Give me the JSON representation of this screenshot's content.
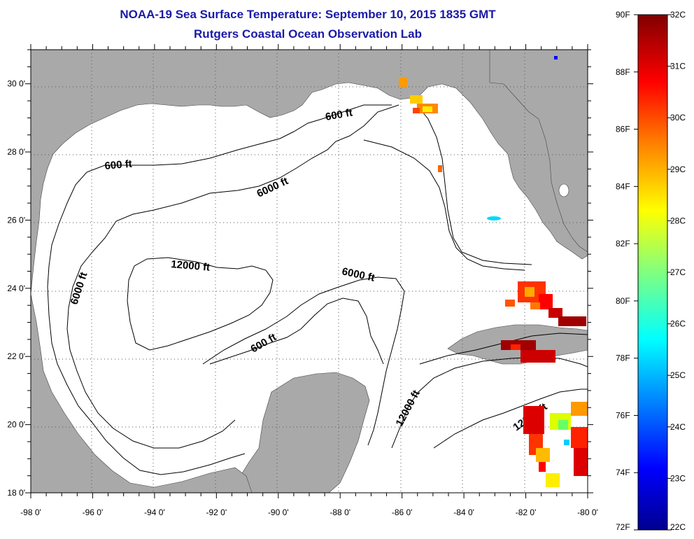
{
  "title": {
    "line1": "NOAA-19 Sea Surface Temperature:  September 10, 2015 1835 GMT",
    "line2": "Rutgers Coastal Ocean Observation Lab"
  },
  "map": {
    "x_ticks": [
      {
        "value": -98,
        "label": "-98 0'"
      },
      {
        "value": -96,
        "label": "-96 0'"
      },
      {
        "value": -94,
        "label": "-94 0'"
      },
      {
        "value": -92,
        "label": "-92 0'"
      },
      {
        "value": -90,
        "label": "-90 0'"
      },
      {
        "value": -88,
        "label": "-88 0'"
      },
      {
        "value": -86,
        "label": "-86 0'"
      },
      {
        "value": -84,
        "label": "-84 0'"
      },
      {
        "value": -82,
        "label": "-82 0'"
      },
      {
        "value": -80,
        "label": "-80 0'"
      }
    ],
    "y_ticks": [
      {
        "value": 30,
        "label": "30 0'"
      },
      {
        "value": 28,
        "label": "28 0'"
      },
      {
        "value": 26,
        "label": "26 0'"
      },
      {
        "value": 24,
        "label": "24 0'"
      },
      {
        "value": 22,
        "label": "22 0'"
      },
      {
        "value": 20,
        "label": "20 0'"
      },
      {
        "value": 18,
        "label": "18 0'"
      }
    ],
    "lon_range": [
      -98,
      -80
    ],
    "lat_range": [
      18,
      31
    ],
    "grid": "dotted",
    "land_color": "#a9a9a9",
    "water_color": "#ffffff",
    "contour_labels": {
      "c600_north": "600 ft",
      "c600_west": "600 ft",
      "c6000_north": "6000 ft",
      "c12000_center": "12000 ft",
      "c6000_center": "6000 ft",
      "c6000_west": "6000 ft",
      "c600_south": "600 ft",
      "c12000_east": "12000 ft",
      "c12000_se": "12000 ft"
    }
  },
  "colorbar": {
    "f_labels": [
      "90F",
      "88F",
      "86F",
      "84F",
      "82F",
      "80F",
      "78F",
      "76F",
      "74F",
      "72F"
    ],
    "c_labels": [
      "32C",
      "31C",
      "30C",
      "29C",
      "28C",
      "27C",
      "26C",
      "25C",
      "24C",
      "23C",
      "22C"
    ],
    "colors": [
      "#00008f",
      "#0000ff",
      "#0080ff",
      "#00ffff",
      "#80ff80",
      "#ffff00",
      "#ff8000",
      "#ff0000",
      "#800000"
    ]
  }
}
